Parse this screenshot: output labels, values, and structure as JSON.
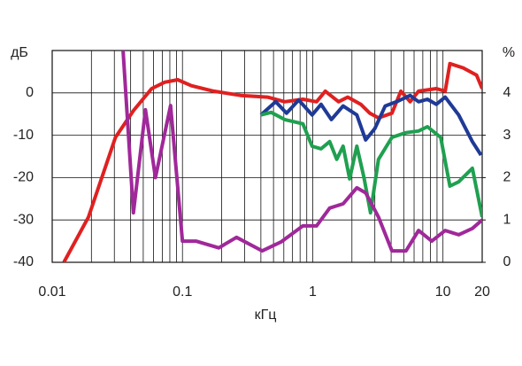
{
  "chart_data": {
    "type": "line",
    "xlabel": "кГц",
    "ylabel": "дБ",
    "y2label": "%",
    "xscale": "log",
    "grid": true,
    "xlim": [
      0.01,
      20
    ],
    "xticks": [
      0.01,
      0.1,
      1,
      10,
      20
    ],
    "ylim": [
      -40,
      10
    ],
    "yticks": [
      -40,
      -30,
      -20,
      -10,
      0
    ],
    "y2lim": [
      0,
      5
    ],
    "y2ticks": [
      0,
      1,
      2,
      3,
      4
    ],
    "series": [
      {
        "color": "#e02020",
        "x": [
          0.0123,
          0.019,
          0.0306,
          0.042,
          0.058,
          0.073,
          0.092,
          0.117,
          0.174,
          0.28,
          0.45,
          0.61,
          0.84,
          1.07,
          1.25,
          1.58,
          1.86,
          2.34,
          2.74,
          3.2,
          4.06,
          4.75,
          5.6,
          6.5,
          8.9,
          10.4,
          11.3,
          14.3,
          18.1,
          20
        ],
        "values": [
          -40,
          -29.3,
          -10.5,
          -4.2,
          1,
          2.5,
          3.1,
          1.7,
          0.4,
          -0.6,
          -1,
          -2.1,
          -1.5,
          -2.1,
          0.4,
          -2.1,
          -1,
          -2.7,
          -4.8,
          -5.9,
          -4.8,
          0.4,
          -2.1,
          0.4,
          1,
          0.4,
          6.9,
          5.9,
          4.2,
          1
        ]
      },
      {
        "color": "#1f3a96",
        "x": [
          0.4,
          0.52,
          0.63,
          0.78,
          0.99,
          1.16,
          1.39,
          1.71,
          2.18,
          2.55,
          3.0,
          3.6,
          4.4,
          5.6,
          6.5,
          7.6,
          8.9,
          10.4,
          13.2,
          16.8,
          19.6
        ],
        "values": [
          -5.2,
          -2.1,
          -4.8,
          -1.7,
          -5.2,
          -2.7,
          -6.3,
          -3.1,
          -5.2,
          -11.1,
          -8.4,
          -3.1,
          -2.1,
          -0.6,
          -2.1,
          -1.5,
          -2.7,
          -1,
          -5.2,
          -11.5,
          -14.7
        ]
      },
      {
        "color": "#1fa050",
        "x": [
          0.4,
          0.48,
          0.61,
          0.84,
          0.99,
          1.16,
          1.35,
          1.53,
          1.71,
          1.92,
          2.18,
          2.47,
          2.78,
          3.2,
          4.06,
          5.2,
          6.5,
          7.6,
          9.6,
          11.3,
          13.2,
          16.8,
          20
        ],
        "values": [
          -5.2,
          -4.6,
          -6.3,
          -7.3,
          -12.6,
          -13.2,
          -11.5,
          -15.7,
          -12.6,
          -20.3,
          -12.6,
          -19.9,
          -28.3,
          -15.7,
          -10.5,
          -9.4,
          -9,
          -8,
          -10.5,
          -22,
          -21,
          -17.8,
          -29.3
        ]
      },
      {
        "color": "#a0289a",
        "axis": "y2",
        "x": [
          0.035,
          0.042,
          0.052,
          0.062,
          0.081,
          0.1,
          0.127,
          0.19,
          0.26,
          0.41,
          0.57,
          0.84,
          1.07,
          1.35,
          1.71,
          2.18,
          2.55,
          3.2,
          4.06,
          5.2,
          6.5,
          8.2,
          10.4,
          13.2,
          16.8,
          20
        ],
        "values": [
          5.0,
          1.17,
          3.6,
          2.0,
          3.7,
          0.5,
          0.5,
          0.34,
          0.59,
          0.27,
          0.48,
          0.86,
          0.86,
          1.28,
          1.38,
          1.76,
          1.64,
          1.07,
          0.27,
          0.27,
          0.75,
          0.5,
          0.75,
          0.65,
          0.8,
          1.0
        ]
      }
    ]
  }
}
